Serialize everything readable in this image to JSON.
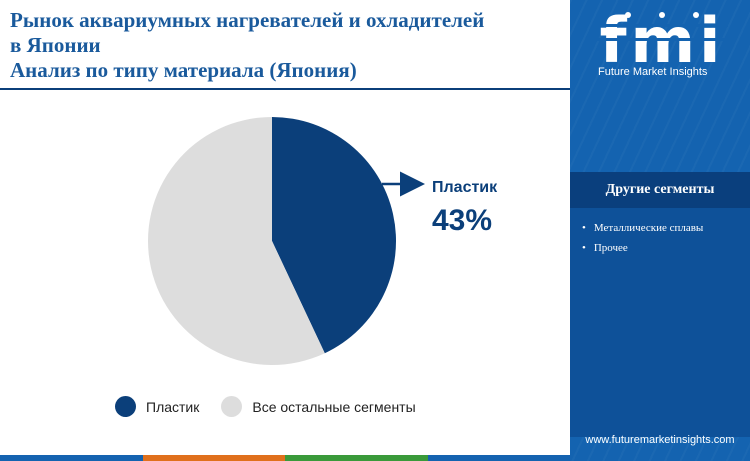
{
  "title": {
    "line1": "Рынок аквариумных нагревателей и охладителей",
    "line2": "в Японии",
    "line3": "Анализ по типу материала (Япония)"
  },
  "chart_data": {
    "type": "pie",
    "slices": [
      {
        "label": "Пластик",
        "value": 43,
        "color": "#0b3f7a"
      },
      {
        "label": "Все остальные сегменты",
        "value": 57,
        "color": "#dddddd"
      }
    ],
    "callout": {
      "label": "Пластик",
      "value_text": "43%"
    }
  },
  "legend": {
    "items": [
      {
        "label": "Пластик",
        "color": "#0b3f7a"
      },
      {
        "label": "Все остальные сегменты",
        "color": "#dddddd"
      }
    ]
  },
  "brand": {
    "logo_letters": "fmi",
    "name": "Future Market Insights",
    "website": "www.futuremarketinsights.com"
  },
  "sidebar": {
    "title": "Другие сегменты",
    "items": [
      "Металлические сплавы",
      "Прочее"
    ]
  },
  "colors": {
    "accent_dark": "#0b3f7a",
    "title_blue": "#1a5a9c",
    "sidebar_blue": "#1463b0",
    "bottom_bar": [
      "#1463b0",
      "#e0701c",
      "#3a9a3a",
      "#1463b0"
    ]
  }
}
